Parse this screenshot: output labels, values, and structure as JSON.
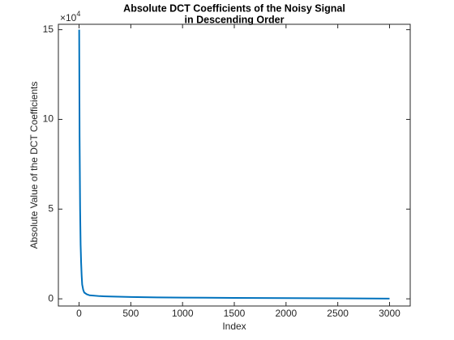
{
  "chart_data": {
    "type": "line",
    "title": [
      "Absolute DCT Coefficients of the Noisy Signal",
      "in Descending Order"
    ],
    "xlabel": "Index",
    "ylabel": "Absolute Value of the DCT Coefficients",
    "y_exponent": {
      "base": "×10",
      "power": "4"
    },
    "x": [
      1,
      5,
      10,
      15,
      20,
      25,
      30,
      40,
      50,
      75,
      100,
      200,
      300,
      500,
      750,
      1000,
      1500,
      2000,
      2500,
      3000
    ],
    "series": [
      {
        "color": "#0072bd",
        "values": [
          15,
          9,
          5,
          3,
          2,
          1.3,
          0.8,
          0.5,
          0.35,
          0.25,
          0.2,
          0.15,
          0.13,
          0.1,
          0.08,
          0.07,
          0.05,
          0.04,
          0.03,
          0.01
        ]
      }
    ],
    "xlim": [
      -200,
      3200
    ],
    "ylim": [
      -0.4,
      15.3
    ],
    "xticks": [
      0,
      500,
      1000,
      1500,
      2000,
      2500,
      3000
    ],
    "yticks": [
      0,
      5,
      10,
      15
    ],
    "grid": false
  }
}
